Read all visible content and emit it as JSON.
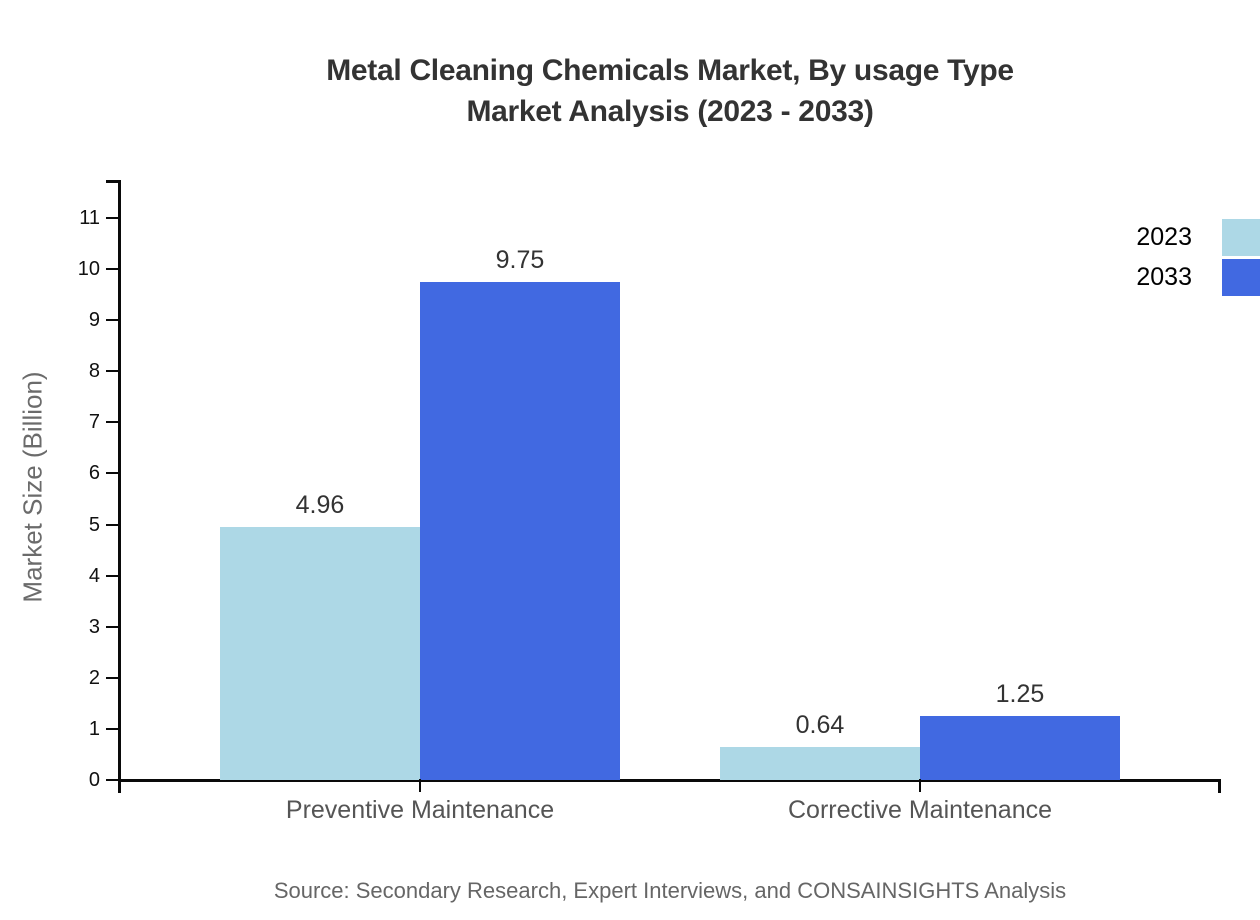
{
  "title": {
    "line1": "Metal Cleaning Chemicals Market, By usage Type",
    "line2": "Market Analysis (2023 - 2033)"
  },
  "chart_data": {
    "type": "bar",
    "title": "Metal Cleaning Chemicals Market, By usage Type Market Analysis (2023 - 2033)",
    "categories": [
      "Preventive Maintenance",
      "Corrective Maintenance"
    ],
    "series": [
      {
        "name": "2023",
        "color": "#ADD8E6",
        "values": [
          4.96,
          0.64
        ]
      },
      {
        "name": "2033",
        "color": "#4169E1",
        "values": [
          9.75,
          1.25
        ]
      }
    ],
    "xlabel": "",
    "ylabel": "Market Size (Billion)",
    "ylim": [
      0,
      11.7
    ],
    "yticks": [
      0,
      1,
      2,
      3,
      4,
      5,
      6,
      7,
      8,
      9,
      10,
      11
    ],
    "grid": false,
    "legend_position": "top-right",
    "value_label_decimals": 2
  },
  "source": "Source: Secondary Research, Expert Interviews, and CONSAINSIGHTS Analysis",
  "colors": {
    "series_2023": "#ADD8E6",
    "series_2033": "#4169E1",
    "axis": "#0a0a0a",
    "title_text": "#333333",
    "category_text": "#555555",
    "muted_text": "#666666"
  }
}
